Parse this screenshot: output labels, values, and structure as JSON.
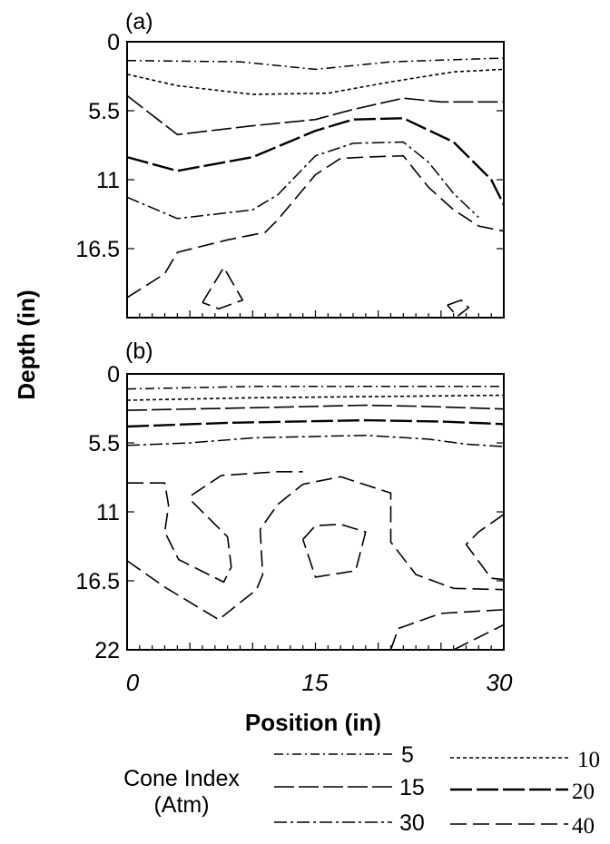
{
  "chart_data": [
    {
      "type": "contour",
      "panel_label": "(a)",
      "x_range": [
        0,
        30
      ],
      "y_range": [
        0,
        22
      ],
      "y_ticks": [
        "0",
        "5.5",
        "11",
        "16.5"
      ],
      "contours": [
        {
          "level": "5",
          "points": [
            [
              0,
              1.5
            ],
            [
              9,
              1.6
            ],
            [
              15,
              2.2
            ],
            [
              21,
              1.6
            ],
            [
              30,
              1.3
            ]
          ]
        },
        {
          "level": "10",
          "points": [
            [
              0,
              2.6
            ],
            [
              4,
              3.5
            ],
            [
              10,
              4.2
            ],
            [
              16,
              4.1
            ],
            [
              21,
              3.2
            ],
            [
              26,
              2.4
            ],
            [
              30,
              2.2
            ]
          ]
        },
        {
          "level": "15",
          "points": [
            [
              0,
              4.3
            ],
            [
              4,
              7.4
            ],
            [
              10,
              6.7
            ],
            [
              15,
              6.2
            ],
            [
              18,
              5.4
            ],
            [
              22,
              4.5
            ],
            [
              25,
              4.8
            ],
            [
              30,
              4.8
            ]
          ]
        },
        {
          "level": "20",
          "points": [
            [
              0,
              9.2
            ],
            [
              4,
              10.3
            ],
            [
              10,
              9.2
            ],
            [
              15,
              7.1
            ],
            [
              18,
              6.2
            ],
            [
              22,
              6.1
            ],
            [
              26,
              8.0
            ],
            [
              29,
              11.0
            ],
            [
              30,
              13.0
            ]
          ]
        },
        {
          "level": "30",
          "points": [
            [
              0,
              12.4
            ],
            [
              4,
              14.1
            ],
            [
              10,
              13.4
            ],
            [
              12,
              12.2
            ],
            [
              15,
              9.1
            ],
            [
              18,
              8.1
            ],
            [
              22,
              8.0
            ],
            [
              24,
              9.6
            ],
            [
              26,
              12.1
            ],
            [
              28,
              14.0
            ]
          ]
        },
        {
          "level": "40",
          "points": [
            [
              0,
              20.4
            ],
            [
              3,
              18.5
            ],
            [
              4,
              16.8
            ],
            [
              8,
              15.8
            ],
            [
              11,
              15.2
            ],
            [
              12,
              14.2
            ],
            [
              15,
              10.6
            ],
            [
              17,
              9.3
            ],
            [
              19,
              9.2
            ],
            [
              22,
              9.1
            ],
            [
              24,
              11.6
            ],
            [
              26,
              13.4
            ],
            [
              28,
              14.7
            ],
            [
              30,
              15.1
            ]
          ]
        },
        {
          "level": "40",
          "points": [
            [
              6,
              20.8
            ],
            [
              7.7,
              18.0
            ],
            [
              9.2,
              20.6
            ],
            [
              7.3,
              21.3
            ],
            [
              6,
              20.8
            ]
          ]
        },
        {
          "level": "40",
          "points": [
            [
              25.5,
              21.0
            ],
            [
              26.6,
              20.6
            ],
            [
              27.2,
              21.2
            ],
            [
              26.3,
              21.9
            ],
            [
              25.5,
              21.0
            ]
          ]
        }
      ]
    },
    {
      "type": "contour",
      "panel_label": "(b)",
      "x_range": [
        0,
        30
      ],
      "y_range": [
        0,
        22
      ],
      "y_ticks": [
        "0",
        "5.5",
        "11",
        "16.5",
        "22"
      ],
      "x_ticks": [
        "0",
        "15",
        "30"
      ],
      "xlabel": "Position (in)",
      "contours": [
        {
          "level": "5",
          "points": [
            [
              0,
              1.2
            ],
            [
              10,
              1.0
            ],
            [
              20,
              1.0
            ],
            [
              30,
              1.0
            ]
          ]
        },
        {
          "level": "10",
          "points": [
            [
              0,
              2.1
            ],
            [
              10,
              1.9
            ],
            [
              20,
              1.8
            ],
            [
              30,
              1.7
            ]
          ]
        },
        {
          "level": "15",
          "points": [
            [
              0,
              2.9
            ],
            [
              10,
              2.7
            ],
            [
              19,
              2.5
            ],
            [
              24,
              2.6
            ],
            [
              30,
              2.8
            ]
          ]
        },
        {
          "level": "20",
          "points": [
            [
              0,
              4.2
            ],
            [
              8,
              3.9
            ],
            [
              19,
              3.7
            ],
            [
              25,
              3.8
            ],
            [
              30,
              4.0
            ]
          ]
        },
        {
          "level": "30",
          "points": [
            [
              0,
              5.7
            ],
            [
              5,
              5.5
            ],
            [
              10,
              5.1
            ],
            [
              19,
              4.9
            ],
            [
              24,
              5.2
            ],
            [
              27,
              5.6
            ],
            [
              30,
              5.8
            ]
          ]
        },
        {
          "level": "40",
          "points": [
            [
              0,
              8.7
            ],
            [
              3,
              8.7
            ],
            [
              3.3,
              10.5
            ],
            [
              3,
              12.6
            ],
            [
              4.1,
              14.8
            ],
            [
              7.7,
              16.6
            ],
            [
              8.3,
              15.4
            ],
            [
              8,
              13.0
            ],
            [
              5.2,
              10.2
            ],
            [
              5.1,
              9.7
            ],
            [
              7.5,
              8.1
            ],
            [
              12,
              7.8
            ],
            [
              14,
              7.8
            ]
          ]
        },
        {
          "level": "40",
          "points": [
            [
              0,
              14.9
            ],
            [
              3,
              17.0
            ],
            [
              7.3,
              19.6
            ],
            [
              10.3,
              17.2
            ],
            [
              10.8,
              16.0
            ],
            [
              10.6,
              12.4
            ],
            [
              12,
              10.4
            ],
            [
              14,
              8.8
            ],
            [
              17,
              8.2
            ],
            [
              21,
              9.5
            ],
            [
              21,
              13.4
            ],
            [
              23,
              16.0
            ],
            [
              26,
              17.1
            ],
            [
              30,
              17.2
            ]
          ]
        },
        {
          "level": "40",
          "points": [
            [
              14,
              13.2
            ],
            [
              15,
              12.1
            ],
            [
              17,
              12.0
            ],
            [
              19,
              12.6
            ],
            [
              18.2,
              15.7
            ],
            [
              15,
              16.2
            ],
            [
              14,
              13.2
            ]
          ]
        },
        {
          "level": "40",
          "points": [
            [
              30,
              11.2
            ],
            [
              28,
              12.6
            ],
            [
              27,
              13.6
            ],
            [
              29,
              16.3
            ],
            [
              30,
              16.4
            ]
          ]
        },
        {
          "level": "40",
          "points": [
            [
              21,
              22.0
            ],
            [
              21.6,
              20.3
            ],
            [
              25,
              19.1
            ],
            [
              30,
              18.8
            ]
          ]
        },
        {
          "level": "40",
          "points": [
            [
              26,
              22.0
            ],
            [
              30,
              20.0
            ]
          ]
        }
      ]
    }
  ],
  "ylabel": "Depth (in)",
  "legend": {
    "title_line1": "Cone Index",
    "title_line2": "(Atm)",
    "entries": [
      {
        "label": "5",
        "style": "dashdot-fine"
      },
      {
        "label": "10",
        "style": "dotted-fine"
      },
      {
        "label": "15",
        "style": "long-dash"
      },
      {
        "label": "20",
        "style": "long-dash-bold"
      },
      {
        "label": "30",
        "style": "dash-dot-long"
      },
      {
        "label": "40",
        "style": "dash-long-gap"
      }
    ]
  }
}
